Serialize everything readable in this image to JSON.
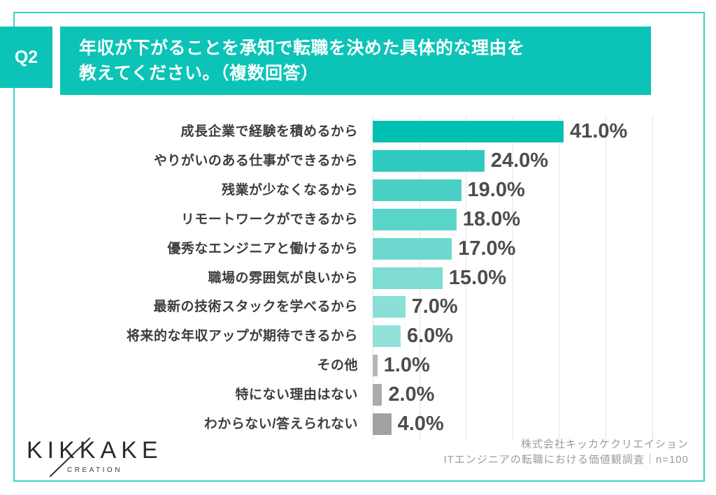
{
  "header": {
    "badge": "Q2",
    "title_line1": "年収が下がることを承知で転職を決めた具体的な理由を",
    "title_line2": "教えてください。（複数回答）"
  },
  "chart_data": {
    "type": "bar",
    "orientation": "horizontal",
    "title": "年収が下がることを承知で転職を決めた具体的な理由を教えてください。（複数回答）",
    "unit": "%",
    "xlim": [
      0,
      60
    ],
    "grid": true,
    "gridline_interval": 10,
    "categories": [
      "成長企業で経験を積めるから",
      "やりがいのある仕事ができるから",
      "残業が少なくなるから",
      "リモートワークができるから",
      "優秀なエンジニアと働けるから",
      "職場の雰囲気が良いから",
      "最新の技術スタックを学べるから",
      "将来的な年収アップが期待できるから",
      "その他",
      "特にない理由はない",
      "わからない/答えられない"
    ],
    "values": [
      41.0,
      24.0,
      19.0,
      18.0,
      17.0,
      15.0,
      7.0,
      6.0,
      1.0,
      2.0,
      4.0
    ],
    "value_labels": [
      "41.0%",
      "24.0%",
      "19.0%",
      "18.0%",
      "17.0%",
      "15.0%",
      "7.0%",
      "6.0%",
      "1.0%",
      "2.0%",
      "4.0%"
    ],
    "bar_colors": [
      "#00bfb3",
      "#2fcabd",
      "#4ad0c5",
      "#5bd4ca",
      "#6ed8cf",
      "#7edcd3",
      "#8adfd6",
      "#93e2d9",
      "#b5b5b5",
      "#ababab",
      "#a2a2a2"
    ]
  },
  "footer": {
    "logo_main": "KIKKAKE",
    "logo_sub": "CREATION",
    "source_line1": "株式会社キッカケクリエイション",
    "source_line2": "ITエンジニアの転職における価値観調査｜n=100"
  },
  "colors": {
    "accent": "#0bc4b7",
    "frame_border": "#38d2c6",
    "grid": "#e4e4e4",
    "label_text": "#3d3d3d",
    "value_text": "#4d4d4d",
    "source_text": "#9b9b9b"
  }
}
